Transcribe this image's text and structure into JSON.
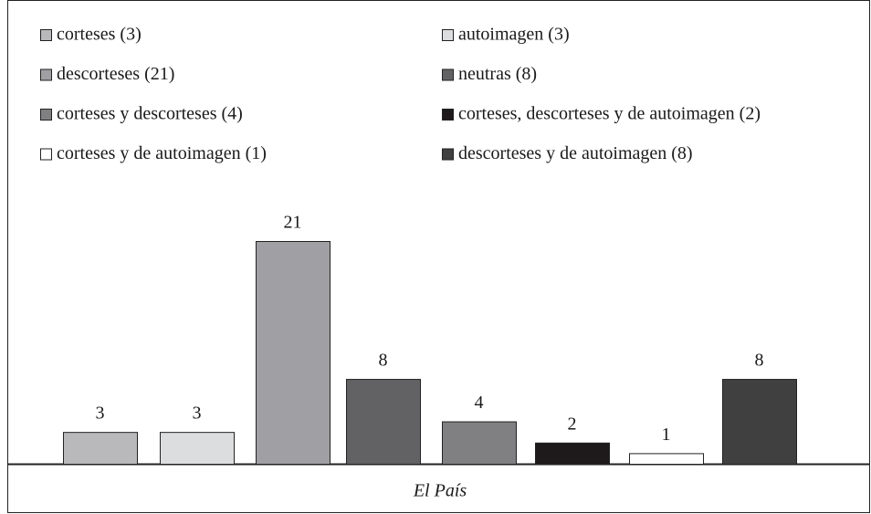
{
  "chart_data": {
    "type": "bar",
    "categories": [
      "El País"
    ],
    "series": [
      {
        "name": "corteses (3)",
        "color": "#b9b9bb",
        "values": [
          3
        ]
      },
      {
        "name": "autoimagen (3)",
        "color": "#dcdddf",
        "values": [
          3
        ]
      },
      {
        "name": "descorteses (21)",
        "color": "#a0a0a4",
        "values": [
          21
        ]
      },
      {
        "name": "neutras (8)",
        "color": "#626264",
        "values": [
          8
        ]
      },
      {
        "name": "corteses y descorteses (4)",
        "color": "#808083",
        "values": [
          4
        ]
      },
      {
        "name": "corteses, descorteses y de autoimagen (2)",
        "color": "#1e1a1b",
        "values": [
          2
        ]
      },
      {
        "name": "corteses y de autoimagen (1)",
        "color": "#ffffff",
        "values": [
          1
        ]
      },
      {
        "name": "descorteses y de autoimagen (8)",
        "color": "#404040",
        "values": [
          8
        ]
      }
    ]
  }
}
